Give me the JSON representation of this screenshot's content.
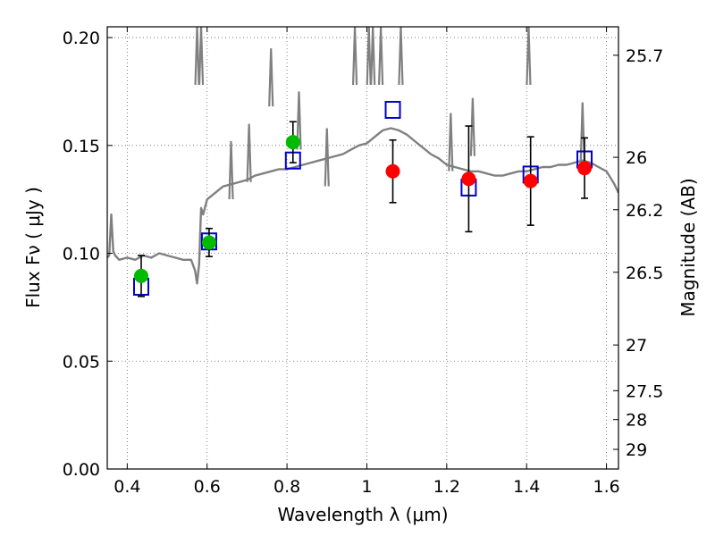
{
  "chart_data": {
    "type": "scatter",
    "xlabel": "Wavelength  λ (μm)",
    "ylabel": "Flux  Fν  ( μJy )",
    "y2label": "Magnitude (AB)",
    "xlim": [
      0.35,
      1.63
    ],
    "ylim": [
      0.0,
      0.205
    ],
    "grid": true,
    "x_ticks": [
      0.4,
      0.6,
      0.8,
      1.0,
      1.2,
      1.4,
      1.6
    ],
    "x_tick_labels": [
      "0.4",
      "0.6",
      "0.8",
      "1",
      "1.2",
      "1.4",
      "1.6"
    ],
    "y_ticks": [
      0.0,
      0.05,
      0.1,
      0.15,
      0.2
    ],
    "y_tick_labels": [
      "0.00",
      "0.05",
      "0.10",
      "0.15",
      "0.20"
    ],
    "y2_ticks": [
      {
        "label": "25.7",
        "flux": 0.1918
      },
      {
        "label": "26",
        "flux": 0.1445
      },
      {
        "label": "26.2",
        "flux": 0.1202
      },
      {
        "label": "26.5",
        "flux": 0.0912
      },
      {
        "label": "27",
        "flux": 0.0575
      },
      {
        "label": "27.5",
        "flux": 0.0363
      },
      {
        "label": "28",
        "flux": 0.0229
      },
      {
        "label": "29",
        "flux": 0.0091
      }
    ],
    "colors": {
      "spectrum": "#808080",
      "model_boxes": "#0000cc",
      "optical_points": "#00bb00",
      "nir_points": "#ff0000",
      "errorbars": "#000000",
      "grid": "#666666"
    },
    "series": [
      {
        "kind": "line",
        "x": [
          0.35,
          0.355,
          0.36,
          0.365,
          0.37,
          0.38,
          0.4,
          0.42,
          0.44,
          0.46,
          0.48,
          0.5,
          0.52,
          0.54,
          0.56,
          0.57,
          0.575,
          0.58,
          0.585,
          0.59,
          0.6,
          0.62,
          0.64,
          0.66,
          0.68,
          0.7,
          0.72,
          0.74,
          0.76,
          0.78,
          0.8,
          0.82,
          0.84,
          0.86,
          0.88,
          0.9,
          0.92,
          0.94,
          0.96,
          0.98,
          1.0,
          1.02,
          1.04,
          1.06,
          1.08,
          1.1,
          1.12,
          1.14,
          1.16,
          1.18,
          1.2,
          1.22,
          1.24,
          1.26,
          1.28,
          1.3,
          1.32,
          1.34,
          1.36,
          1.38,
          1.4,
          1.42,
          1.44,
          1.46,
          1.48,
          1.5,
          1.52,
          1.54,
          1.56,
          1.58,
          1.6,
          1.62,
          1.63
        ],
        "y": [
          0.098,
          0.099,
          0.118,
          0.101,
          0.099,
          0.097,
          0.098,
          0.097,
          0.099,
          0.098,
          0.1,
          0.099,
          0.098,
          0.097,
          0.097,
          0.092,
          0.086,
          0.095,
          0.121,
          0.118,
          0.125,
          0.128,
          0.131,
          0.132,
          0.133,
          0.134,
          0.136,
          0.137,
          0.138,
          0.139,
          0.139,
          0.14,
          0.141,
          0.142,
          0.143,
          0.144,
          0.145,
          0.146,
          0.148,
          0.15,
          0.151,
          0.154,
          0.157,
          0.158,
          0.157,
          0.155,
          0.152,
          0.149,
          0.146,
          0.144,
          0.141,
          0.14,
          0.139,
          0.138,
          0.138,
          0.137,
          0.136,
          0.136,
          0.137,
          0.138,
          0.138,
          0.139,
          0.14,
          0.14,
          0.141,
          0.141,
          0.142,
          0.143,
          0.142,
          0.14,
          0.138,
          0.132,
          0.128
        ]
      },
      {
        "kind": "spikes",
        "x": [
          0.575,
          0.585,
          0.66,
          0.705,
          0.76,
          0.83,
          0.9,
          0.97,
          1.005,
          1.015,
          1.035,
          1.085,
          1.21,
          1.265,
          1.405,
          1.54
        ],
        "y": [
          0.205,
          0.205,
          0.152,
          0.16,
          0.195,
          0.175,
          0.158,
          0.205,
          0.205,
          0.205,
          0.205,
          0.205,
          0.165,
          0.172,
          0.205,
          0.17
        ]
      },
      {
        "kind": "boxes",
        "x": [
          0.435,
          0.605,
          0.815,
          1.065,
          1.255,
          1.41,
          1.545
        ],
        "y": [
          0.0845,
          0.1055,
          0.143,
          0.1665,
          0.1305,
          0.1365,
          0.1435
        ]
      },
      {
        "kind": "points",
        "x": [
          0.435,
          0.605,
          0.815
        ],
        "y": [
          0.0895,
          0.105,
          0.1515
        ],
        "err": [
          0.0095,
          0.0065,
          0.0095
        ]
      },
      {
        "kind": "points",
        "x": [
          1.065,
          1.255,
          1.41,
          1.545
        ],
        "y": [
          0.138,
          0.1345,
          0.1335,
          0.1395
        ],
        "err": [
          0.0145,
          0.0245,
          0.0205,
          0.014
        ]
      }
    ]
  }
}
